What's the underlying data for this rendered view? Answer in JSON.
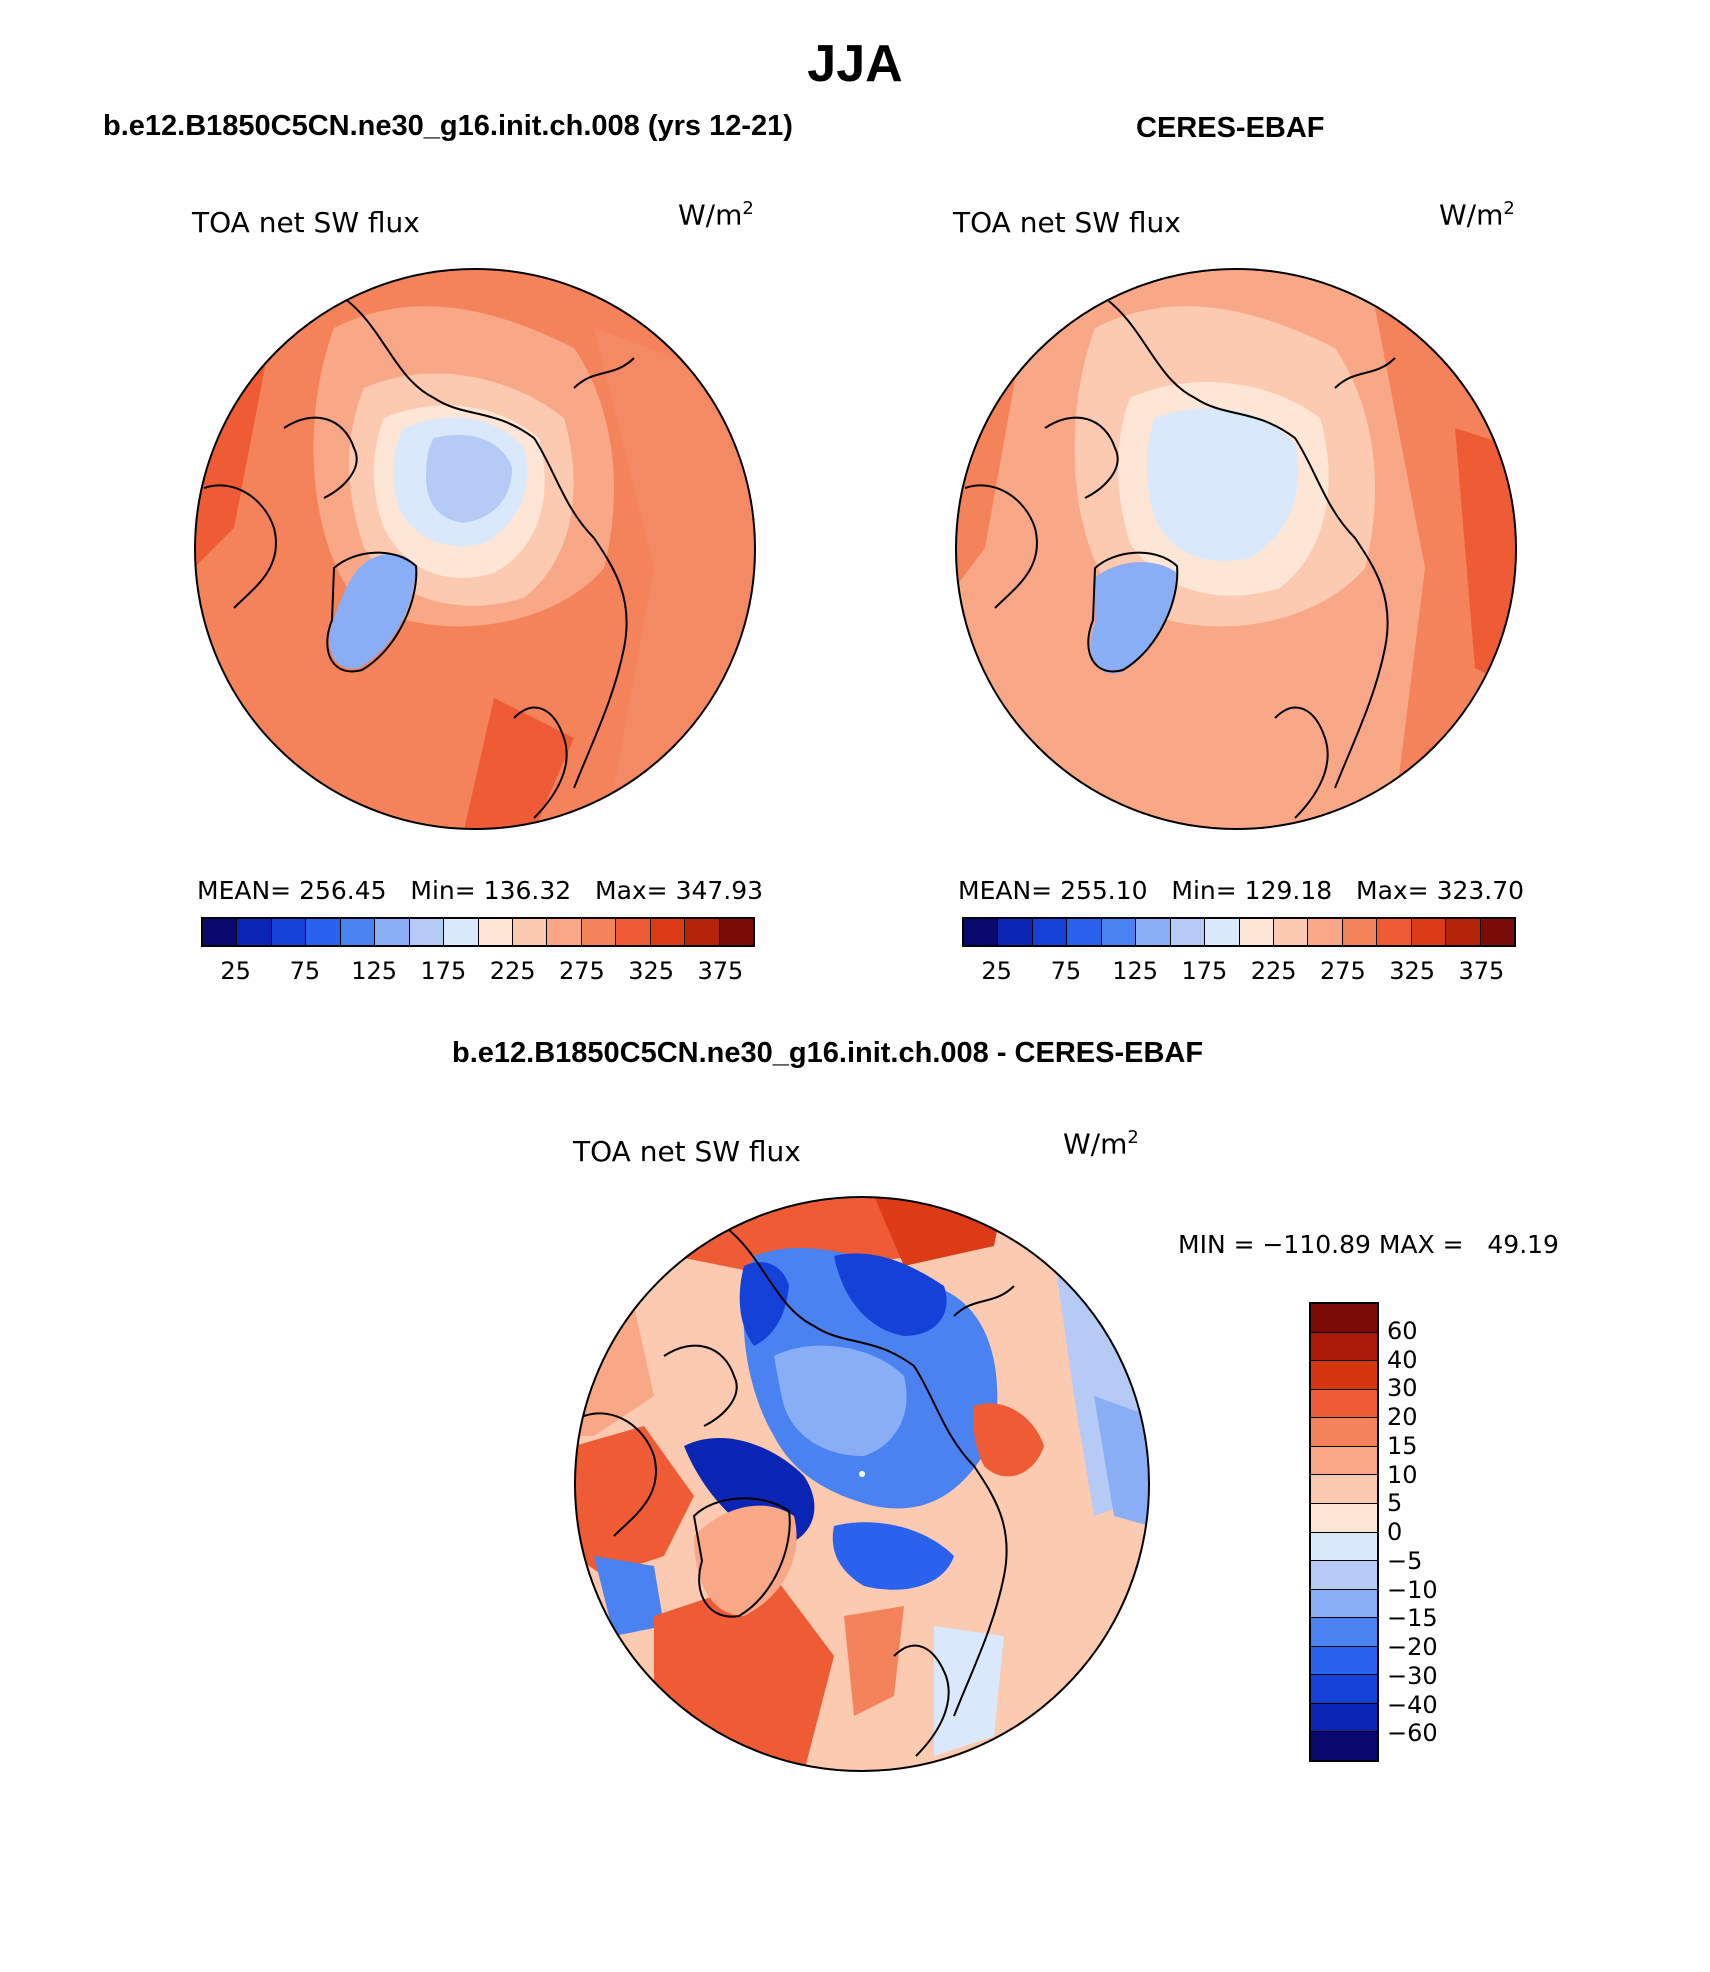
{
  "title": "JJA",
  "panels": [
    {
      "id": "model",
      "title": "b.e12.B1850C5CN.ne30_g16.init.ch.008 (yrs 12-21)",
      "label": "TOA net SW flux",
      "units": "W/m",
      "units_exp": "2",
      "stats": {
        "mean_label": "MEAN=",
        "mean": "256.45",
        "min_label": "Min=",
        "min": "136.32",
        "max_label": "Max=",
        "max": "347.93"
      }
    },
    {
      "id": "obs",
      "title": "CERES-EBAF",
      "label": "TOA net SW flux",
      "units": "W/m",
      "units_exp": "2",
      "stats": {
        "mean_label": "MEAN=",
        "mean": "255.10",
        "min_label": "Min=",
        "min": "129.18",
        "max_label": "Max=",
        "max": "323.70"
      }
    },
    {
      "id": "diff",
      "title": "b.e12.B1850C5CN.ne30_g16.init.ch.008 - CERES-EBAF",
      "label": "TOA net SW flux",
      "units": "W/m",
      "units_exp": "2",
      "stats_line": "MIN = −110.89 MAX =   49.19"
    }
  ],
  "colorbar_abs": {
    "colors": [
      "#08086e",
      "#0a25b4",
      "#1442d8",
      "#2a62ee",
      "#4a82f2",
      "#8aaef5",
      "#b5cbf6",
      "#d9e8fa",
      "#fde6d6",
      "#fbcab0",
      "#f8a886",
      "#f4835c",
      "#ee5b34",
      "#dd3a18",
      "#b52408",
      "#7a0b06"
    ],
    "ticks": [
      "25",
      "75",
      "125",
      "175",
      "225",
      "275",
      "325",
      "375"
    ]
  },
  "colorbar_diff": {
    "colors": [
      "#7a0b06",
      "#a91a08",
      "#d6360f",
      "#ee5b34",
      "#f4835c",
      "#f8a886",
      "#fbcab0",
      "#fde6d6",
      "#d9e8fa",
      "#b5cbf6",
      "#8aaef5",
      "#4a82f2",
      "#2a62ee",
      "#1442d8",
      "#0a25b4",
      "#08086e"
    ],
    "ticks": [
      "60",
      "40",
      "30",
      "20",
      "15",
      "10",
      "5",
      "0",
      "−5",
      "−10",
      "−15",
      "−20",
      "−30",
      "−40",
      "−60"
    ]
  }
}
